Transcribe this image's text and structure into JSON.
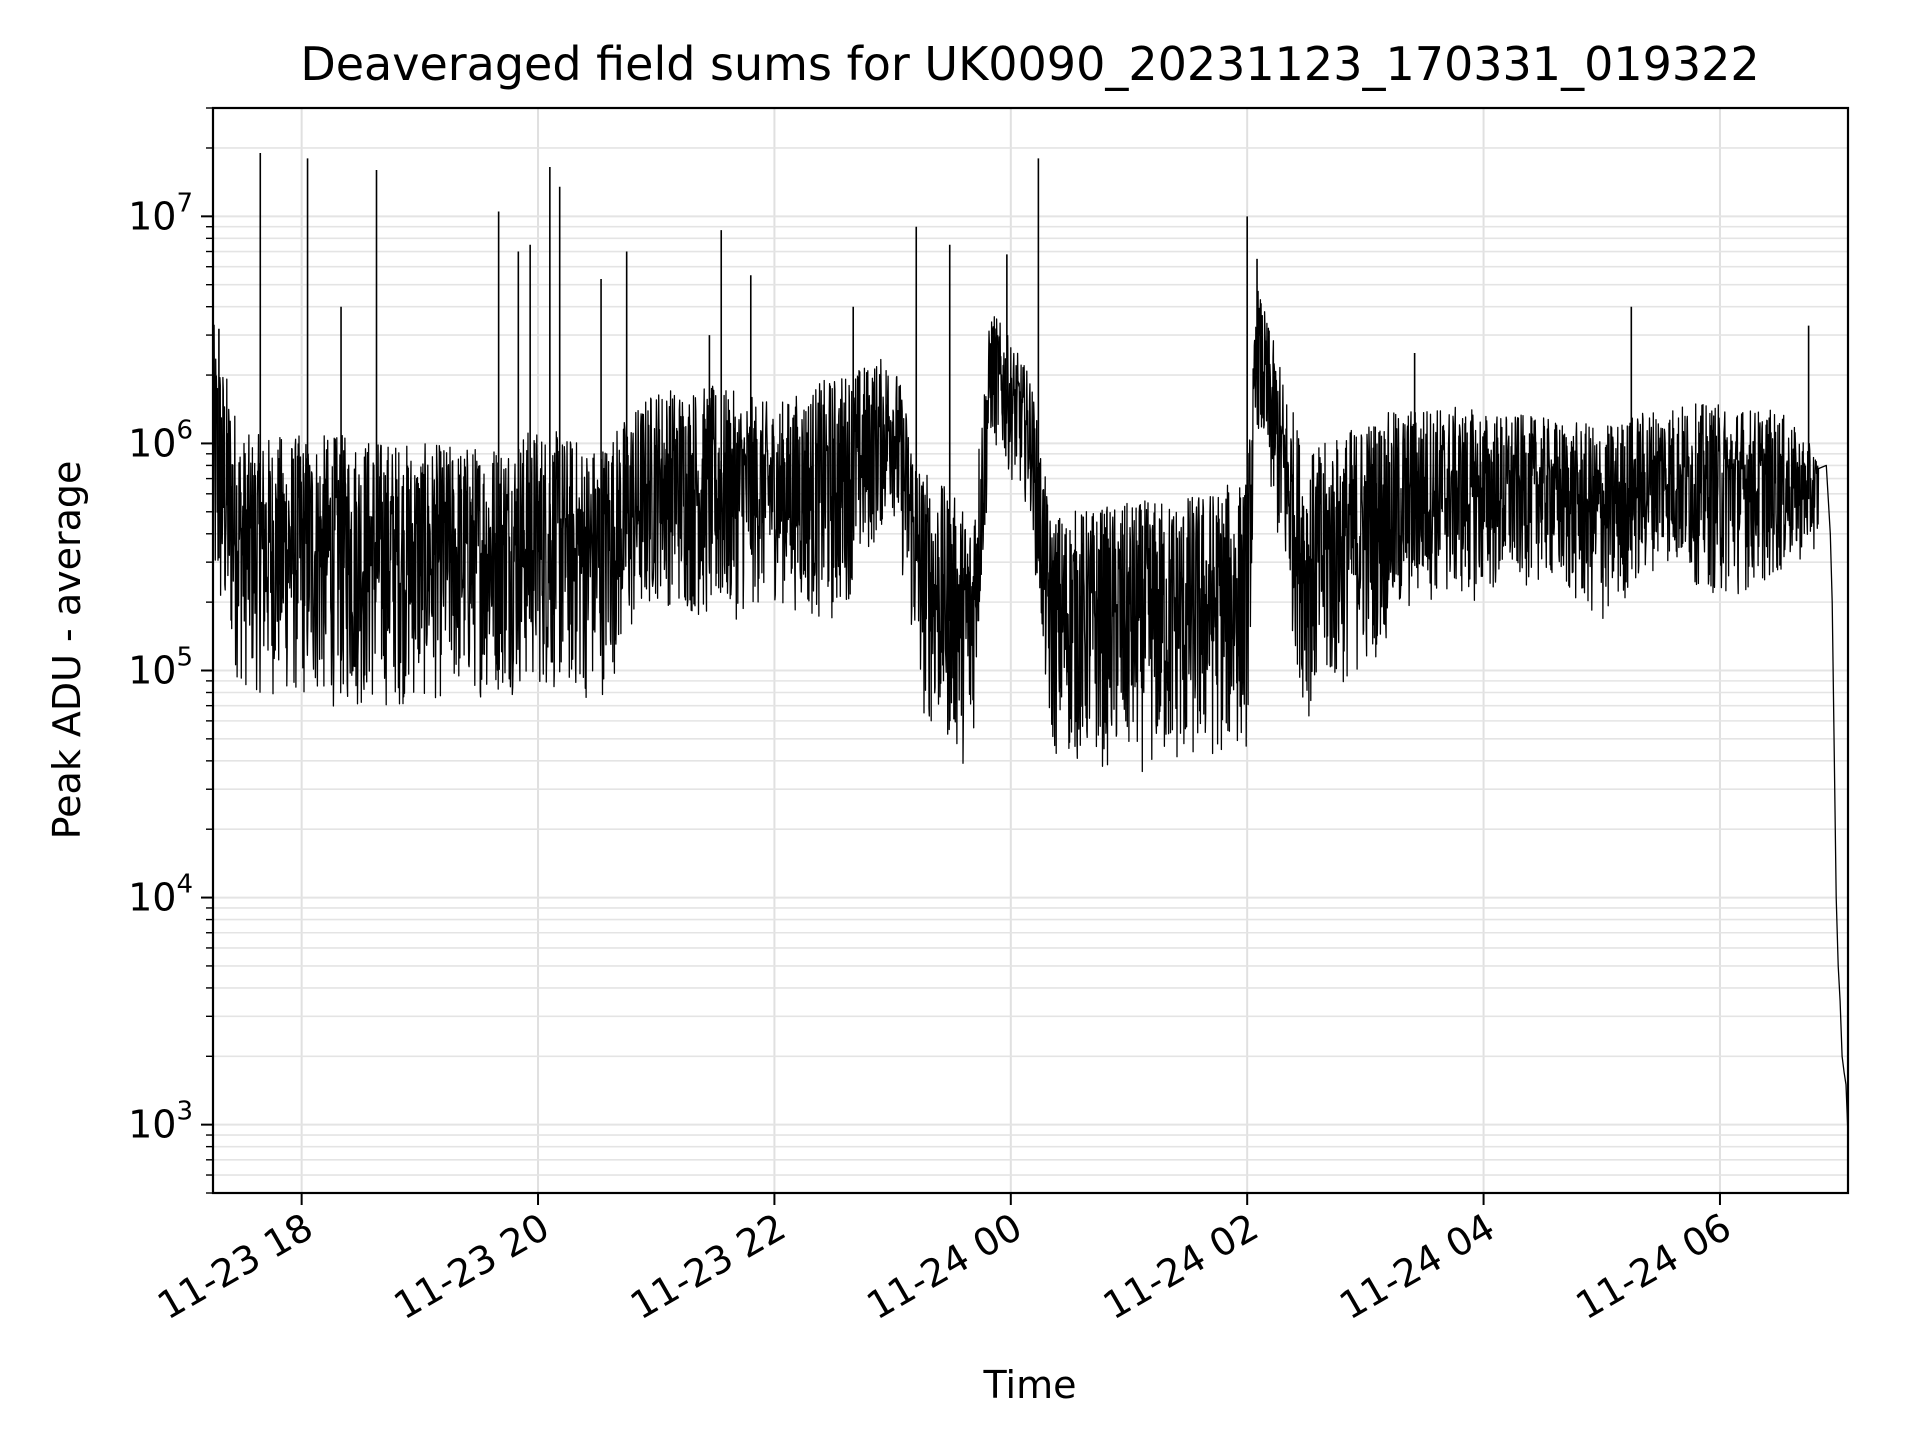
{
  "chart_data": {
    "type": "line",
    "title": "Deaveraged field sums for UK0090_20231123_170331_019322",
    "xlabel": "Time",
    "ylabel": "Peak ADU - average",
    "yscale": "log",
    "ylim": [
      500,
      30000000
    ],
    "xlim": [
      "2023-11-23 17:15",
      "2023-11-24 07:05"
    ],
    "grid": true,
    "x_ticks": [
      {
        "label": "11-23 18",
        "value": "2023-11-23 18:00"
      },
      {
        "label": "11-23 20",
        "value": "2023-11-23 20:00"
      },
      {
        "label": "11-23 22",
        "value": "2023-11-23 22:00"
      },
      {
        "label": "11-24 00",
        "value": "2023-11-24 00:00"
      },
      {
        "label": "11-24 02",
        "value": "2023-11-24 02:00"
      },
      {
        "label": "11-24 04",
        "value": "2023-11-24 04:00"
      },
      {
        "label": "11-24 06",
        "value": "2023-11-24 06:00"
      }
    ],
    "y_ticks": [
      {
        "base": "10",
        "exp": "3",
        "value": 1000
      },
      {
        "base": "10",
        "exp": "4",
        "value": 10000
      },
      {
        "base": "10",
        "exp": "5",
        "value": 100000
      },
      {
        "base": "10",
        "exp": "6",
        "value": 1000000
      },
      {
        "base": "10",
        "exp": "7",
        "value": 10000000
      }
    ],
    "series": [
      {
        "color": "#000000",
        "envelope": [
          {
            "t": "2023-11-23 17:15",
            "low": 150000,
            "high": 3500000
          },
          {
            "t": "2023-11-23 17:30",
            "low": 80000,
            "high": 1100000
          },
          {
            "t": "2023-11-23 18:00",
            "low": 70000,
            "high": 1100000
          },
          {
            "t": "2023-11-23 18:30",
            "low": 65000,
            "high": 1100000
          },
          {
            "t": "2023-11-23 19:00",
            "low": 70000,
            "high": 1000000
          },
          {
            "t": "2023-11-23 19:30",
            "low": 75000,
            "high": 1000000
          },
          {
            "t": "2023-11-23 20:00",
            "low": 80000,
            "high": 1200000
          },
          {
            "t": "2023-11-23 20:30",
            "low": 70000,
            "high": 1000000
          },
          {
            "t": "2023-11-23 21:00",
            "low": 200000,
            "high": 1800000
          },
          {
            "t": "2023-11-23 21:30",
            "low": 150000,
            "high": 1800000
          },
          {
            "t": "2023-11-23 22:00",
            "low": 200000,
            "high": 1500000
          },
          {
            "t": "2023-11-23 22:30",
            "low": 150000,
            "high": 2000000
          },
          {
            "t": "2023-11-23 23:00",
            "low": 500000,
            "high": 2500000
          },
          {
            "t": "2023-11-23 23:15",
            "low": 60000,
            "high": 800000
          },
          {
            "t": "2023-11-23 23:40",
            "low": 35000,
            "high": 500000
          },
          {
            "t": "2023-11-23 23:50",
            "low": 1000000,
            "high": 4000000
          },
          {
            "t": "2023-11-24 00:10",
            "low": 500000,
            "high": 2000000
          },
          {
            "t": "2023-11-24 00:20",
            "low": 40000,
            "high": 500000
          },
          {
            "t": "2023-11-24 01:00",
            "low": 35000,
            "high": 550000
          },
          {
            "t": "2023-11-24 01:30",
            "low": 35000,
            "high": 600000
          },
          {
            "t": "2023-11-24 02:00",
            "low": 45000,
            "high": 700000
          },
          {
            "t": "2023-11-24 02:05",
            "low": 1200000,
            "high": 5000000
          },
          {
            "t": "2023-11-24 02:30",
            "low": 60000,
            "high": 900000
          },
          {
            "t": "2023-11-24 03:00",
            "low": 100000,
            "high": 1300000
          },
          {
            "t": "2023-11-24 03:30",
            "low": 200000,
            "high": 1500000
          },
          {
            "t": "2023-11-24 04:00",
            "low": 200000,
            "high": 1400000
          },
          {
            "t": "2023-11-24 04:30",
            "low": 250000,
            "high": 1300000
          },
          {
            "t": "2023-11-24 05:00",
            "low": 150000,
            "high": 1200000
          },
          {
            "t": "2023-11-24 05:30",
            "low": 300000,
            "high": 1500000
          },
          {
            "t": "2023-11-24 06:00",
            "low": 200000,
            "high": 1500000
          },
          {
            "t": "2023-11-24 06:30",
            "low": 250000,
            "high": 1400000
          },
          {
            "t": "2023-11-24 06:50",
            "low": 350000,
            "high": 900000
          }
        ],
        "spikes": [
          {
            "t": "2023-11-23 17:18",
            "y": 3200000
          },
          {
            "t": "2023-11-23 17:39",
            "y": 19000000
          },
          {
            "t": "2023-11-23 18:03",
            "y": 18000000
          },
          {
            "t": "2023-11-23 18:20",
            "y": 4000000
          },
          {
            "t": "2023-11-23 18:38",
            "y": 16000000
          },
          {
            "t": "2023-11-23 19:40",
            "y": 10500000
          },
          {
            "t": "2023-11-23 19:50",
            "y": 7000000
          },
          {
            "t": "2023-11-23 19:56",
            "y": 7500000
          },
          {
            "t": "2023-11-23 20:06",
            "y": 16500000
          },
          {
            "t": "2023-11-23 20:11",
            "y": 13500000
          },
          {
            "t": "2023-11-23 20:32",
            "y": 5300000
          },
          {
            "t": "2023-11-23 20:45",
            "y": 7000000
          },
          {
            "t": "2023-11-23 21:27",
            "y": 3000000
          },
          {
            "t": "2023-11-23 21:33",
            "y": 8700000
          },
          {
            "t": "2023-11-23 21:48",
            "y": 5500000
          },
          {
            "t": "2023-11-23 22:40",
            "y": 4000000
          },
          {
            "t": "2023-11-23 23:12",
            "y": 9000000
          },
          {
            "t": "2023-11-23 23:29",
            "y": 7500000
          },
          {
            "t": "2023-11-23 23:58",
            "y": 6800000
          },
          {
            "t": "2023-11-24 00:14",
            "y": 18000000
          },
          {
            "t": "2023-11-24 02:00",
            "y": 10000000
          },
          {
            "t": "2023-11-24 02:05",
            "y": 6500000
          },
          {
            "t": "2023-11-24 03:25",
            "y": 2500000
          },
          {
            "t": "2023-11-24 05:15",
            "y": 4000000
          },
          {
            "t": "2023-11-24 06:45",
            "y": 3300000
          }
        ],
        "tail": [
          {
            "t": "2023-11-24 06:54",
            "y": 800000
          },
          {
            "t": "2023-11-24 06:56",
            "y": 400000
          },
          {
            "t": "2023-11-24 06:57",
            "y": 200000
          },
          {
            "t": "2023-11-24 06:59",
            "y": 10000
          },
          {
            "t": "2023-11-24 07:00",
            "y": 5000
          },
          {
            "t": "2023-11-24 07:01",
            "y": 3500
          },
          {
            "t": "2023-11-24 07:02",
            "y": 2000
          },
          {
            "t": "2023-11-24 07:03",
            "y": 1700
          },
          {
            "t": "2023-11-24 07:04",
            "y": 1500
          },
          {
            "t": "2023-11-24 07:05",
            "y": 900
          }
        ]
      }
    ]
  }
}
